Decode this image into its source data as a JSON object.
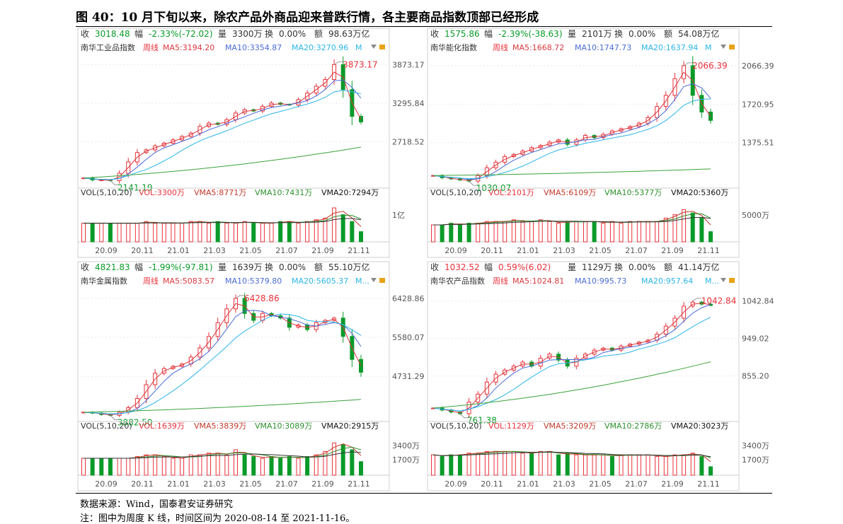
{
  "figure_title": "图 40：10 月下旬以来，除农产品外商品迎来普跌行情，各主要商品指数顶部已经形成",
  "source_note": "数据来源：Wind，国泰君安证券研究",
  "date_note": "注：图中为周度 K 线，时间区间为 2020-08-14 至 2021-11-16。",
  "colors": {
    "up": "#e8313a",
    "down": "#0a9a2a",
    "ma5": "#d9393f",
    "ma10": "#4a6bd6",
    "ma20": "#2bb5e8",
    "ma60": "#3aa23a",
    "vma5": "#c0392b",
    "vma10": "#2d8f2d",
    "vma20": "#333333"
  },
  "chart_data": [
    {
      "type": "candlestick",
      "name": "南华工业品指数",
      "stats": {
        "close_label": "收",
        "close": "3018.48",
        "chg_label": "幅",
        "chg": "-2.33%(-72.02)",
        "vol_label": "量",
        "vol": "3300万",
        "turn_label": "换",
        "turn": "0.00%",
        "amt_label": "额",
        "amt": "98.63万亿"
      },
      "legend": {
        "period": "周线",
        "ma5": "MA5:3194.20",
        "ma10": "MA10:3354.87",
        "ma20": "MA20:3270.96",
        "more": "M"
      },
      "vol_legend": {
        "head": "VOL(5,10,20)",
        "vol": "VOL:3300万",
        "vma5": "VMA5:8771万",
        "vma10": "VMA10:7431万",
        "vma20": "VMA20:7294万"
      },
      "y_ticks": [
        "3873.17",
        "3295.84",
        "2718.52"
      ],
      "y_range": [
        2050,
        3930
      ],
      "max_label": "3873.17",
      "min_label": "2141.19",
      "vol_ticks": [
        "1亿"
      ],
      "x_ticks": [
        "20.09",
        "20.11",
        "21.01",
        "21.03",
        "21.05",
        "21.07",
        "21.09",
        "21.11"
      ],
      "start": 2180,
      "low": 2141.19,
      "high": 3873.17,
      "end": 3018.48,
      "mid": [
        2180,
        2150,
        2150,
        2141,
        2250,
        2420,
        2560,
        2600,
        2660,
        2700,
        2750,
        2800,
        2850,
        2950,
        3000,
        2980,
        3050,
        3150,
        3200,
        3180,
        3250,
        3300,
        3280,
        3270,
        3350,
        3450,
        3550,
        3650,
        3873,
        3500,
        3100,
        3018
      ],
      "vol_levels": [
        0.55,
        0.55,
        0.55,
        0.55,
        0.55,
        0.55,
        0.55,
        0.6,
        0.55,
        0.55,
        0.55,
        0.55,
        0.6,
        0.6,
        0.55,
        0.6,
        0.55,
        0.55,
        0.6,
        0.55,
        0.55,
        0.55,
        0.6,
        0.6,
        0.55,
        0.6,
        0.65,
        0.7,
        1.0,
        0.8,
        0.6,
        0.3
      ],
      "ma60_rise": 0.55
    },
    {
      "type": "candlestick",
      "name": "南华能化指数",
      "stats": {
        "close_label": "收",
        "close": "1575.86",
        "chg_label": "幅",
        "chg": "-2.39%(-38.63)",
        "vol_label": "量",
        "vol": "2101万",
        "turn_label": "换",
        "turn": "0.00%",
        "amt_label": "额",
        "amt": "54.08万亿"
      },
      "legend": {
        "period": "周线",
        "ma5": "MA5:1668.72",
        "ma10": "MA10:1747.73",
        "ma20": "MA20:1637.94",
        "more": "M"
      },
      "vol_legend": {
        "head": "VOL(5,10,20)",
        "vol": "VOL:2101万",
        "vma5": "VMA5:6109万",
        "vma10": "VMA10:5377万",
        "vma20": "VMA20:5360万"
      },
      "y_ticks": [
        "2066.39",
        "1720.95",
        "1375.51"
      ],
      "y_range": [
        980,
        2110
      ],
      "max_label": "2066.39",
      "min_label": "1030.07",
      "vol_ticks": [
        "5000万"
      ],
      "x_ticks": [
        "20.09",
        "20.11",
        "21.01",
        "21.03",
        "21.05",
        "21.07",
        "21.09",
        "21.11"
      ],
      "start": 1080,
      "low": 1030.07,
      "high": 2066.39,
      "end": 1575.86,
      "mid": [
        1080,
        1060,
        1050,
        1040,
        1030,
        1080,
        1150,
        1200,
        1250,
        1270,
        1300,
        1330,
        1350,
        1380,
        1400,
        1360,
        1400,
        1440,
        1420,
        1450,
        1480,
        1500,
        1520,
        1550,
        1600,
        1700,
        1800,
        1950,
        2066,
        1800,
        1650,
        1575
      ],
      "vol_levels": [
        0.5,
        0.5,
        0.55,
        0.5,
        0.55,
        0.55,
        0.6,
        0.6,
        0.6,
        0.65,
        0.6,
        0.6,
        0.65,
        0.6,
        0.55,
        0.6,
        0.6,
        0.6,
        0.6,
        0.55,
        0.6,
        0.55,
        0.6,
        0.6,
        0.6,
        0.6,
        0.7,
        0.8,
        0.95,
        0.85,
        0.7,
        0.3
      ],
      "ma60_rise": 0.12
    },
    {
      "type": "candlestick",
      "name": "南华金属指数",
      "stats": {
        "close_label": "收",
        "close": "4821.83",
        "chg_label": "幅",
        "chg": "-1.99%(-97.81)",
        "vol_label": "量",
        "vol": "1639万",
        "turn_label": "换",
        "turn": "0.00%",
        "amt_label": "额",
        "amt": "55.10万亿"
      },
      "legend": {
        "period": "周线",
        "ma5": "MA5:5083.57",
        "ma10": "MA10:5379.80",
        "ma20": "MA20:5605.37",
        "more": "M..."
      },
      "vol_legend": {
        "head": "VOL(5,10,20)",
        "vol": "VOL:1639万",
        "vma5": "VMA5:3839万",
        "vma10": "VMA10:3089万",
        "vma20": "VMA20:2915万"
      },
      "y_ticks": [
        "6428.86",
        "5580.07",
        "4731.29"
      ],
      "y_range": [
        3780,
        6520
      ],
      "max_label": "6428.86",
      "min_label": "3882.50",
      "vol_ticks": [
        "3400万",
        "1700万"
      ],
      "x_ticks": [
        "20.09",
        "20.11",
        "21.01",
        "21.03",
        "21.05",
        "21.07",
        "21.09",
        "21.11"
      ],
      "start": 3950,
      "low": 3882.5,
      "high": 6428.86,
      "end": 4821.83,
      "mid": [
        3950,
        3930,
        3900,
        3882,
        3950,
        4050,
        4250,
        4550,
        4800,
        4900,
        4950,
        5000,
        5150,
        5350,
        5600,
        5900,
        6200,
        6428,
        6100,
        5950,
        6100,
        6050,
        6000,
        5800,
        5850,
        5750,
        5900,
        5950,
        6000,
        5600,
        5100,
        4821
      ],
      "vol_levels": [
        0.5,
        0.5,
        0.5,
        0.5,
        0.5,
        0.5,
        0.55,
        0.6,
        0.6,
        0.55,
        0.5,
        0.5,
        0.6,
        0.6,
        0.65,
        0.65,
        0.6,
        0.75,
        0.6,
        0.55,
        0.5,
        0.55,
        0.5,
        0.55,
        0.5,
        0.55,
        0.6,
        0.7,
        0.95,
        0.9,
        0.75,
        0.4
      ],
      "ma60_rise": 0.32
    },
    {
      "type": "candlestick",
      "name": "南华农产品指数",
      "stats": {
        "close_label": "收",
        "close": "1032.52",
        "chg_label": "幅",
        "chg": "0.59%(6.02)",
        "vol_label": "量",
        "vol": "1129万",
        "turn_label": "换",
        "turn": "0.00%",
        "amt_label": "额",
        "amt": "41.14万亿"
      },
      "legend": {
        "period": "周线",
        "ma5": "MA5:1024.81",
        "ma10": "MA10:995.73",
        "ma20": "MA20:957.64",
        "more": "M..."
      },
      "vol_legend": {
        "head": "VOL(5,10,20)",
        "vol": "VOL:1129万",
        "vma5": "VMA5:3209万",
        "vma10": "VMA10:2786万",
        "vma20": "VMA20:3023万"
      },
      "y_ticks": [
        "1042.84",
        "949.02",
        "855.20"
      ],
      "y_range": [
        745,
        1060
      ],
      "max_label": "1042.84",
      "min_label": "761.38",
      "vol_ticks": [
        "3400万",
        "1700万"
      ],
      "x_ticks": [
        "20.09",
        "20.11",
        "21.01",
        "21.03",
        "21.05",
        "21.07",
        "21.09",
        "21.11"
      ],
      "start": 775,
      "low": 761.38,
      "high": 1042.84,
      "end": 1032.52,
      "mid": [
        775,
        770,
        765,
        761,
        790,
        810,
        840,
        860,
        870,
        880,
        890,
        880,
        900,
        910,
        895,
        880,
        900,
        910,
        920,
        925,
        920,
        930,
        935,
        940,
        945,
        960,
        980,
        1000,
        1030,
        1040,
        1035,
        1032
      ],
      "vol_levels": [
        0.6,
        0.55,
        0.6,
        0.6,
        0.65,
        0.65,
        0.7,
        0.7,
        0.7,
        0.7,
        0.65,
        0.65,
        0.7,
        0.7,
        0.6,
        0.65,
        0.6,
        0.6,
        0.6,
        0.6,
        0.55,
        0.6,
        0.6,
        0.6,
        0.6,
        0.55,
        0.55,
        0.6,
        0.6,
        0.65,
        0.55,
        0.25
      ],
      "ma60_rise": 0.45
    }
  ]
}
